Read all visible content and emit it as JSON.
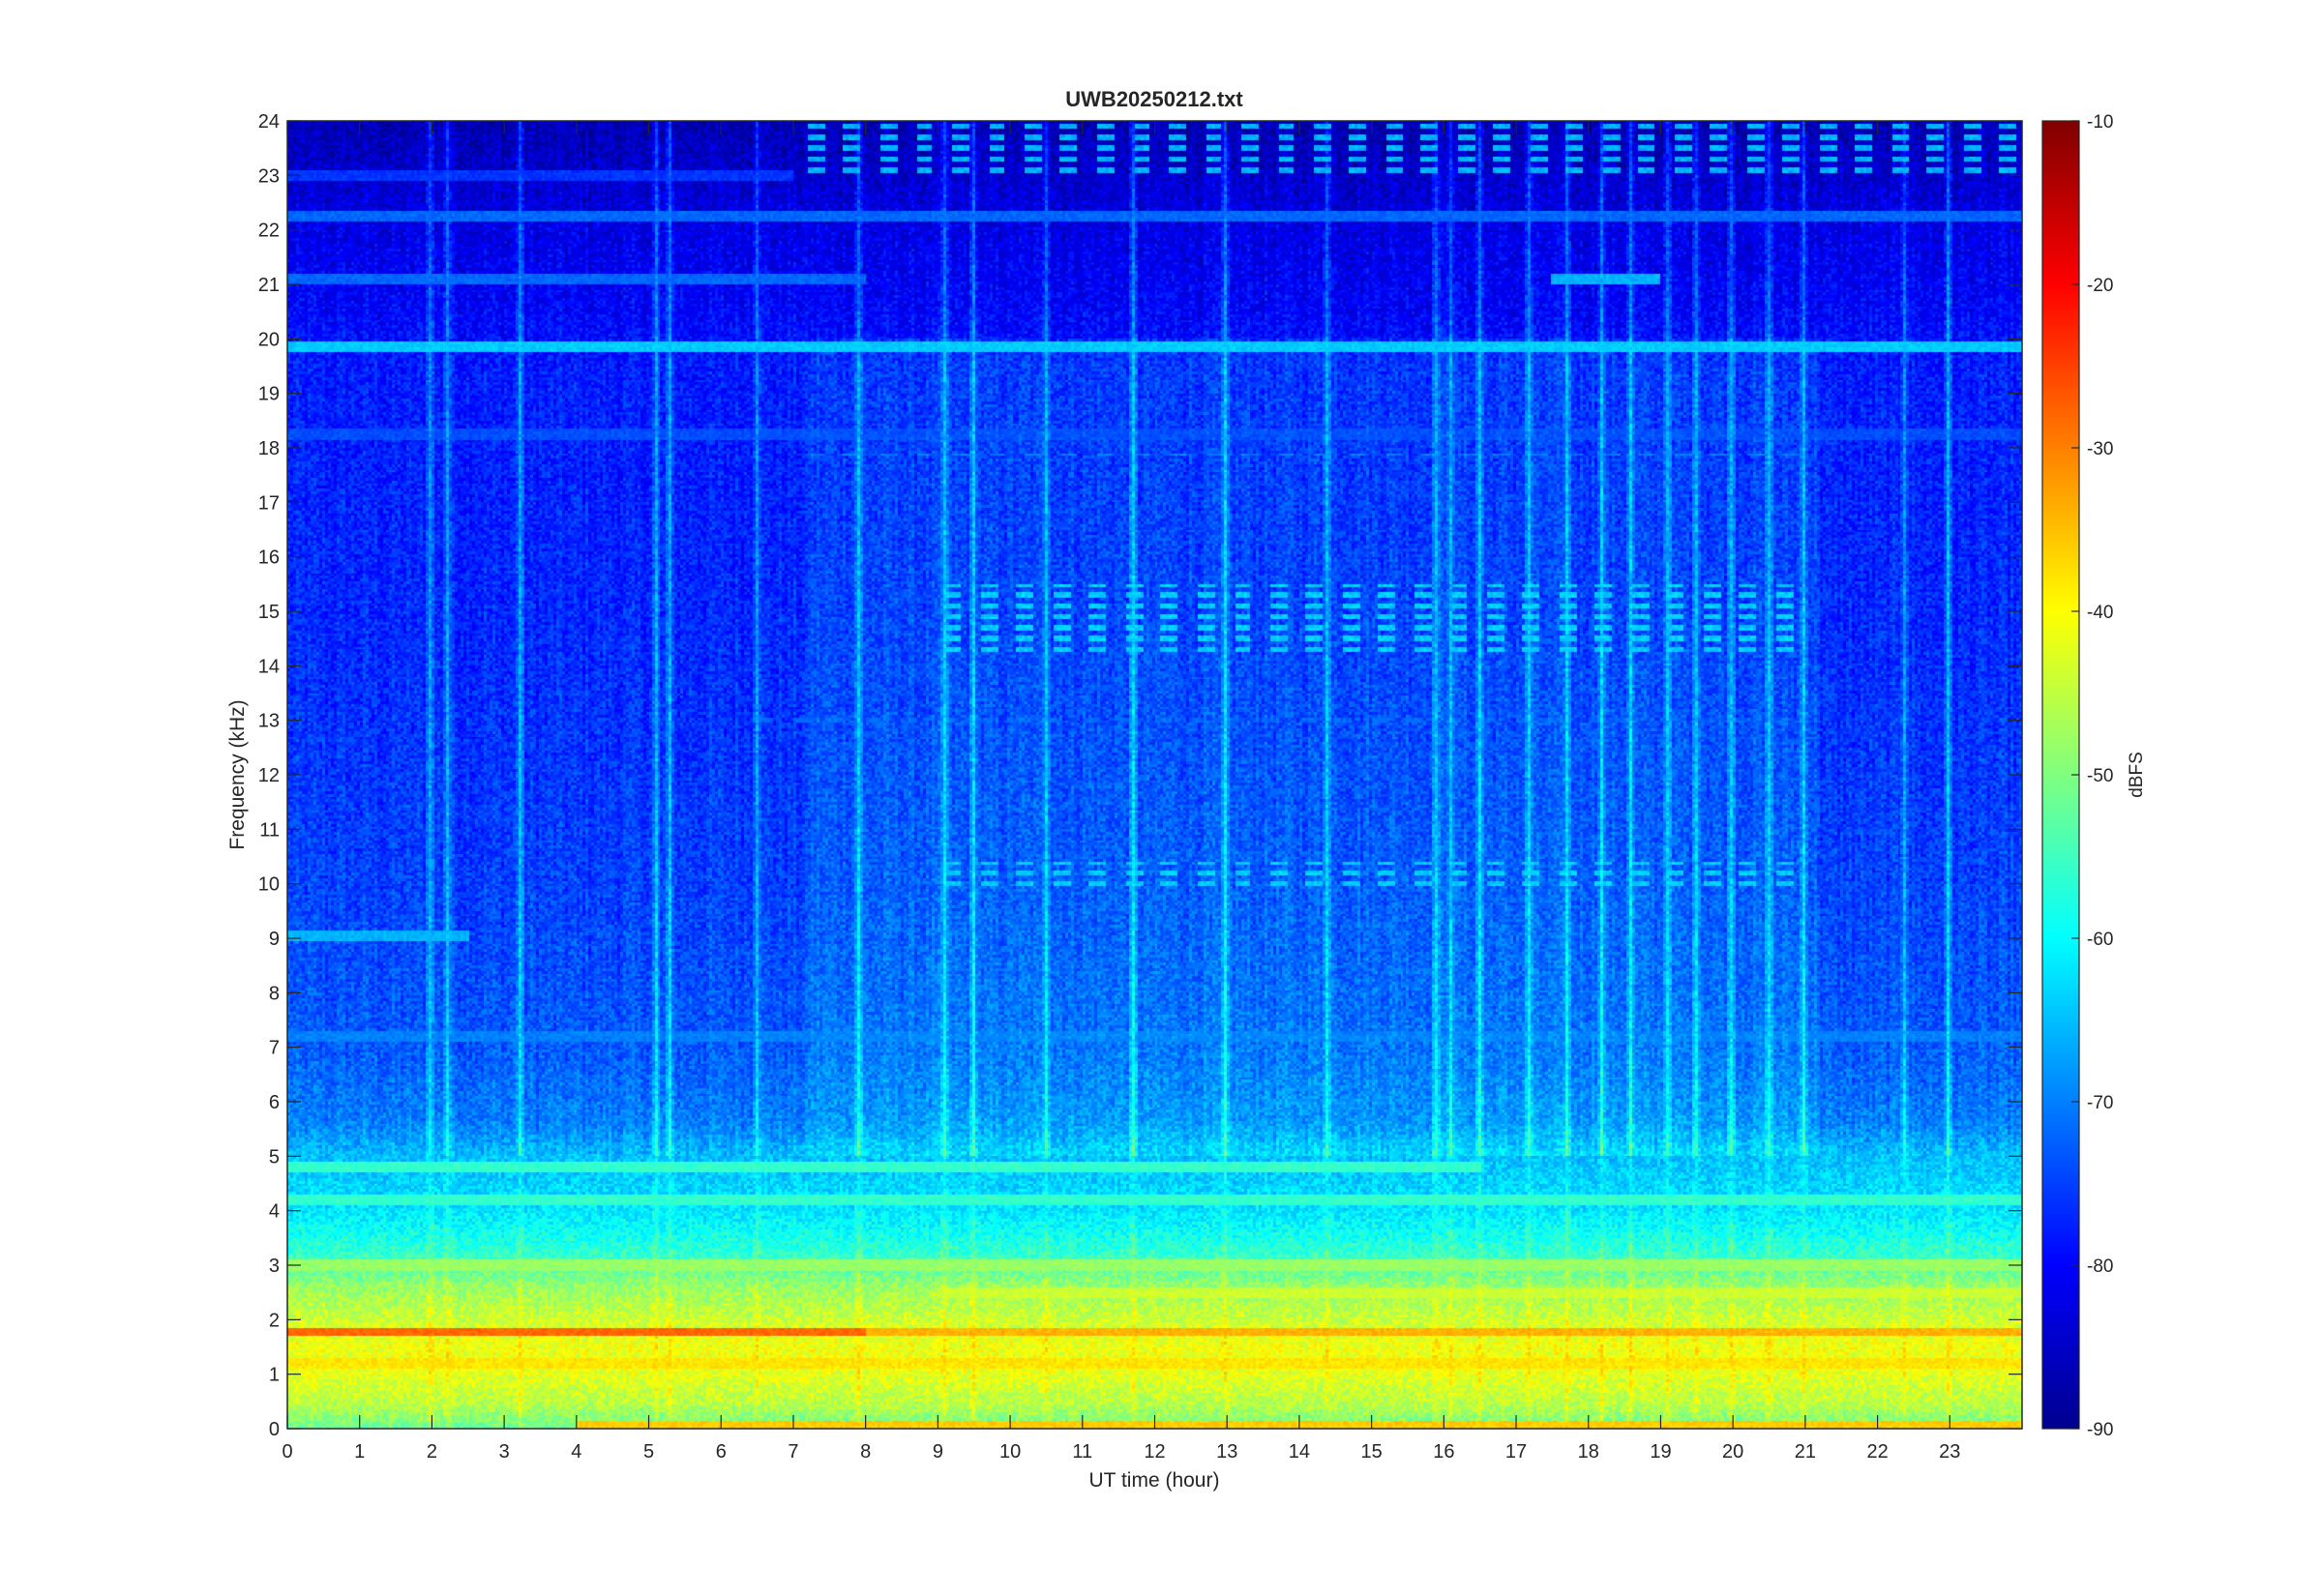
{
  "chart_data": {
    "type": "heatmap",
    "title": "UWB20250212.txt",
    "xlabel": "UT time (hour)",
    "ylabel": "Frequency (kHz)",
    "colorbar_label": "dBFS",
    "colormap": "jet",
    "xlim": [
      0,
      24
    ],
    "ylim": [
      0,
      24
    ],
    "clim": [
      -90,
      -10
    ],
    "x_ticks": [
      "0",
      "1",
      "2",
      "3",
      "4",
      "5",
      "6",
      "7",
      "8",
      "9",
      "10",
      "11",
      "12",
      "13",
      "14",
      "15",
      "16",
      "17",
      "18",
      "19",
      "20",
      "21",
      "22",
      "23"
    ],
    "y_ticks": [
      "0",
      "1",
      "2",
      "3",
      "4",
      "5",
      "6",
      "7",
      "8",
      "9",
      "10",
      "11",
      "12",
      "13",
      "14",
      "15",
      "16",
      "17",
      "18",
      "19",
      "20",
      "21",
      "22",
      "23",
      "24"
    ],
    "colorbar_ticks": [
      "-10",
      "-20",
      "-30",
      "-40",
      "-50",
      "-60",
      "-70",
      "-80",
      "-90"
    ],
    "background_profile": [
      {
        "freq": 0.0,
        "dbfs": -52
      },
      {
        "freq": 0.4,
        "dbfs": -46
      },
      {
        "freq": 1.0,
        "dbfs": -42
      },
      {
        "freq": 1.5,
        "dbfs": -41
      },
      {
        "freq": 2.0,
        "dbfs": -44
      },
      {
        "freq": 2.6,
        "dbfs": -48
      },
      {
        "freq": 3.2,
        "dbfs": -56
      },
      {
        "freq": 4.0,
        "dbfs": -62
      },
      {
        "freq": 5.0,
        "dbfs": -65
      },
      {
        "freq": 5.6,
        "dbfs": -70
      },
      {
        "freq": 7.0,
        "dbfs": -73
      },
      {
        "freq": 10.0,
        "dbfs": -75
      },
      {
        "freq": 15.0,
        "dbfs": -77
      },
      {
        "freq": 19.5,
        "dbfs": -78
      },
      {
        "freq": 20.5,
        "dbfs": -80
      },
      {
        "freq": 22.0,
        "dbfs": -82
      },
      {
        "freq": 24.0,
        "dbfs": -86
      }
    ],
    "horizontal_lines": [
      {
        "freq": 19.85,
        "t0": 0,
        "t1": 24,
        "dbfs": -64
      },
      {
        "freq": 22.25,
        "t0": 0,
        "t1": 24,
        "dbfs": -72
      },
      {
        "freq": 21.1,
        "t0": 0,
        "t1": 8,
        "dbfs": -72
      },
      {
        "freq": 21.1,
        "t0": 17.5,
        "t1": 19,
        "dbfs": -66
      },
      {
        "freq": 18.25,
        "t0": 0,
        "t1": 24,
        "dbfs": -74
      },
      {
        "freq": 23.0,
        "t0": 0,
        "t1": 7,
        "dbfs": -76
      },
      {
        "freq": 9.05,
        "t0": 0,
        "t1": 2.5,
        "dbfs": -66
      },
      {
        "freq": 7.2,
        "t0": 0,
        "t1": 24,
        "dbfs": -70
      },
      {
        "freq": 4.8,
        "t0": 0,
        "t1": 16.5,
        "dbfs": -56
      },
      {
        "freq": 4.2,
        "t0": 0,
        "t1": 24,
        "dbfs": -56
      },
      {
        "freq": 3.0,
        "t0": 0,
        "t1": 24,
        "dbfs": -48
      },
      {
        "freq": 2.5,
        "t0": 9,
        "t1": 24,
        "dbfs": -44
      },
      {
        "freq": 1.78,
        "t0": 0,
        "t1": 8,
        "dbfs": -28
      },
      {
        "freq": 1.78,
        "t0": 8,
        "t1": 24,
        "dbfs": -34
      },
      {
        "freq": 1.2,
        "t0": 0,
        "t1": 24,
        "dbfs": -38
      },
      {
        "freq": 0.05,
        "t0": 4,
        "t1": 24,
        "dbfs": -36
      }
    ],
    "pulse_groups": [
      {
        "f0": 14.2,
        "f1": 15.5,
        "t0": 9.1,
        "t1": 20.9,
        "dbfs": -64
      },
      {
        "f0": 9.9,
        "f1": 10.4,
        "t0": 9.1,
        "t1": 20.9,
        "dbfs": -64
      },
      {
        "f0": 23.0,
        "f1": 24.0,
        "t0": 7.2,
        "t1": 24,
        "dbfs": -66
      },
      {
        "f0": 17.8,
        "f1": 17.9,
        "t0": 7.2,
        "t1": 21,
        "dbfs": -70
      },
      {
        "f0": 12.9,
        "f1": 13.1,
        "t0": 6.5,
        "t1": 21,
        "dbfs": -72
      },
      {
        "f0": 5.9,
        "f1": 6.1,
        "t0": 7.5,
        "t1": 21,
        "dbfs": -70
      }
    ],
    "vertical_streaks_hours": [
      1.95,
      2.2,
      3.2,
      5.1,
      5.3,
      6.5,
      7.9,
      9.1,
      9.5,
      10.5,
      11.7,
      13.0,
      14.4,
      15.9,
      16.1,
      16.5,
      17.2,
      17.7,
      18.2,
      18.6,
      19.1,
      19.5,
      20.0,
      20.5,
      21.0,
      22.4,
      23.0
    ]
  }
}
